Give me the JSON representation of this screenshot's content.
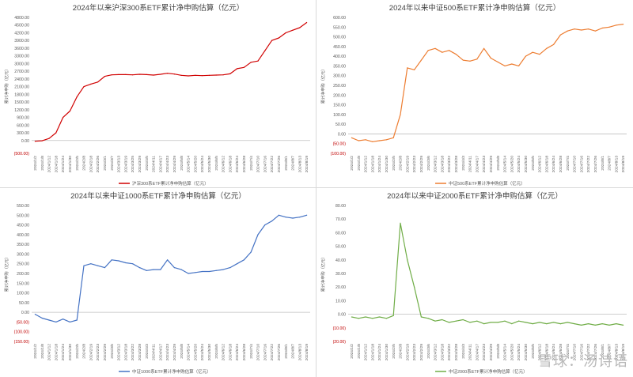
{
  "watermark": "雪球：汤诗语",
  "chart_data": [
    {
      "type": "line",
      "title": "2024年以来沪深300系ETF累计净申购估算（亿元）",
      "ylabel": "累计净申购（亿元）",
      "legend": "沪深300系ETF累计净申购估算（亿元）",
      "legend_position": "bottom",
      "color": "#d00000",
      "ylim": [
        -500,
        4800
      ],
      "yticks": [
        "(500.00)",
        "0.00",
        "300.00",
        "600.00",
        "900.00",
        "1200.00",
        "1500.00",
        "1800.00",
        "2100.00",
        "2400.00",
        "2700.00",
        "3000.00",
        "3300.00",
        "3600.00",
        "3900.00",
        "4200.00",
        "4500.00",
        "4800.00"
      ],
      "ytick_values": [
        -500,
        0,
        300,
        600,
        900,
        1200,
        1500,
        1800,
        2100,
        2400,
        2700,
        3000,
        3300,
        3600,
        3900,
        4200,
        4500,
        4800
      ],
      "xticks": [
        "2024/1/2",
        "2024/1/8",
        "2024/1/12",
        "2024/1/18",
        "2024/1/24",
        "2024/1/30",
        "2024/2/5",
        "2024/2/8",
        "2024/2/18",
        "2024/2/26",
        "2024/3/1",
        "2024/3/7",
        "2024/3/13",
        "2024/3/19",
        "2024/3/25",
        "2024/3/29",
        "2024/4/5",
        "2024/4/11",
        "2024/4/17",
        "2024/4/23",
        "2024/4/29",
        "2024/5/8",
        "2024/5/14",
        "2024/5/20",
        "2024/5/24",
        "2024/5/30",
        "2024/6/5",
        "2024/6/12",
        "2024/6/18",
        "2024/6/24",
        "2024/6/28",
        "2024/7/4",
        "2024/7/10",
        "2024/7/16",
        "2024/7/22",
        "2024/7/26",
        "2024/8/1",
        "2024/8/7",
        "2024/8/13",
        "2024/8/19"
      ],
      "x": [
        "2024/1/2",
        "2024/1/8",
        "2024/1/12",
        "2024/1/18",
        "2024/1/24",
        "2024/1/30",
        "2024/2/5",
        "2024/2/8",
        "2024/2/18",
        "2024/2/26",
        "2024/3/1",
        "2024/3/7",
        "2024/3/13",
        "2024/3/19",
        "2024/3/25",
        "2024/3/29",
        "2024/4/5",
        "2024/4/11",
        "2024/4/17",
        "2024/4/23",
        "2024/4/29",
        "2024/5/8",
        "2024/5/14",
        "2024/5/20",
        "2024/5/24",
        "2024/5/30",
        "2024/6/5",
        "2024/6/12",
        "2024/6/18",
        "2024/6/24",
        "2024/6/28",
        "2024/7/4",
        "2024/7/10",
        "2024/7/16",
        "2024/7/22",
        "2024/7/26",
        "2024/8/1",
        "2024/8/7",
        "2024/8/13",
        "2024/8/19"
      ],
      "values": [
        -30,
        -10,
        80,
        300,
        900,
        1150,
        1700,
        2100,
        2200,
        2280,
        2500,
        2560,
        2570,
        2570,
        2560,
        2580,
        2570,
        2550,
        2580,
        2620,
        2590,
        2540,
        2520,
        2540,
        2530,
        2540,
        2550,
        2560,
        2600,
        2800,
        2850,
        3050,
        3100,
        3500,
        3900,
        4000,
        4200,
        4300,
        4400,
        4600
      ]
    },
    {
      "type": "line",
      "title": "2024年以来中证500系ETF累计净申购估算（亿元）",
      "ylabel": "累计净申购（亿元）",
      "legend": "中证500系ETF累计净申购估算（亿元）",
      "legend_position": "bottom",
      "color": "#ed7d31",
      "ylim": [
        -100,
        600
      ],
      "yticks": [
        "(100.00)",
        "(50.00)",
        "0.00",
        "50.00",
        "100.00",
        "150.00",
        "200.00",
        "250.00",
        "300.00",
        "350.00",
        "400.00",
        "450.00",
        "500.00",
        "550.00",
        "600.00"
      ],
      "ytick_values": [
        -100,
        -50,
        0,
        50,
        100,
        150,
        200,
        250,
        300,
        350,
        400,
        450,
        500,
        550,
        600
      ],
      "xticks": [
        "2024/1/2",
        "2024/1/8",
        "2024/1/12",
        "2024/1/18",
        "2024/1/24",
        "2024/1/30",
        "2024/2/5",
        "2024/2/8",
        "2024/2/19",
        "2024/2/23",
        "2024/2/29",
        "2024/3/6",
        "2024/3/12",
        "2024/3/18",
        "2024/3/22",
        "2024/3/28",
        "2024/4/3",
        "2024/4/11",
        "2024/4/17",
        "2024/4/23",
        "2024/4/29",
        "2024/5/8",
        "2024/5/14",
        "2024/5/20",
        "2024/5/24",
        "2024/5/30",
        "2024/6/5",
        "2024/6/12",
        "2024/6/18",
        "2024/6/24",
        "2024/6/28",
        "2024/7/4",
        "2024/7/10",
        "2024/7/16",
        "2024/7/22",
        "2024/7/26",
        "2024/8/1",
        "2024/8/7",
        "2024/8/13",
        "2024/8/19"
      ],
      "x": [
        "2024/1/2",
        "2024/1/8",
        "2024/1/12",
        "2024/1/18",
        "2024/1/24",
        "2024/1/30",
        "2024/2/5",
        "2024/2/8",
        "2024/2/19",
        "2024/2/23",
        "2024/2/29",
        "2024/3/6",
        "2024/3/12",
        "2024/3/18",
        "2024/3/22",
        "2024/3/28",
        "2024/4/3",
        "2024/4/11",
        "2024/4/17",
        "2024/4/23",
        "2024/4/29",
        "2024/5/8",
        "2024/5/14",
        "2024/5/20",
        "2024/5/24",
        "2024/5/30",
        "2024/6/5",
        "2024/6/12",
        "2024/6/18",
        "2024/6/24",
        "2024/6/28",
        "2024/7/4",
        "2024/7/10",
        "2024/7/16",
        "2024/7/22",
        "2024/7/26",
        "2024/8/1",
        "2024/8/7",
        "2024/8/13",
        "2024/8/19"
      ],
      "values": [
        -20,
        -35,
        -30,
        -40,
        -35,
        -30,
        -20,
        100,
        340,
        330,
        380,
        430,
        440,
        420,
        430,
        410,
        380,
        375,
        385,
        440,
        390,
        370,
        350,
        360,
        350,
        400,
        420,
        410,
        440,
        460,
        510,
        530,
        540,
        535,
        540,
        530,
        545,
        550,
        560,
        565
      ]
    },
    {
      "type": "line",
      "title": "2024年以来中证1000系ETF累计净申购估算（亿元）",
      "ylabel": "累计净申购（亿元）",
      "legend": "中证1000系ETF累计净申购估算（亿元）",
      "legend_position": "bottom",
      "color": "#4472c4",
      "ylim": [
        -150,
        550
      ],
      "yticks": [
        "(150.00)",
        "(100.00)",
        "(50.00)",
        "0.00",
        "50.00",
        "100.00",
        "150.00",
        "200.00",
        "250.00",
        "300.00",
        "350.00",
        "400.00",
        "450.00",
        "500.00",
        "550.00"
      ],
      "ytick_values": [
        -150,
        -100,
        -50,
        0,
        50,
        100,
        150,
        200,
        250,
        300,
        350,
        400,
        450,
        500,
        550
      ],
      "xticks": [
        "2024/1/2",
        "2024/1/8",
        "2024/1/12",
        "2024/1/18",
        "2024/1/24",
        "2024/1/30",
        "2024/2/5",
        "2024/2/8",
        "2024/2/19",
        "2024/2/23",
        "2024/2/29",
        "2024/3/6",
        "2024/3/12",
        "2024/3/18",
        "2024/3/22",
        "2024/3/28",
        "2024/4/3",
        "2024/4/11",
        "2024/4/17",
        "2024/4/23",
        "2024/4/29",
        "2024/5/8",
        "2024/5/14",
        "2024/5/20",
        "2024/5/24",
        "2024/5/30",
        "2024/6/5",
        "2024/6/12",
        "2024/6/18",
        "2024/6/24",
        "2024/6/28",
        "2024/7/4",
        "2024/7/10",
        "2024/7/16",
        "2024/7/22",
        "2024/7/26",
        "2024/8/1",
        "2024/8/7",
        "2024/8/13",
        "2024/8/19"
      ],
      "x": [
        "2024/1/2",
        "2024/1/8",
        "2024/1/12",
        "2024/1/18",
        "2024/1/24",
        "2024/1/30",
        "2024/2/5",
        "2024/2/8",
        "2024/2/19",
        "2024/2/23",
        "2024/2/29",
        "2024/3/6",
        "2024/3/12",
        "2024/3/18",
        "2024/3/22",
        "2024/3/28",
        "2024/4/3",
        "2024/4/11",
        "2024/4/17",
        "2024/4/23",
        "2024/4/29",
        "2024/5/8",
        "2024/5/14",
        "2024/5/20",
        "2024/5/24",
        "2024/5/30",
        "2024/6/5",
        "2024/6/12",
        "2024/6/18",
        "2024/6/24",
        "2024/6/28",
        "2024/7/4",
        "2024/7/10",
        "2024/7/16",
        "2024/7/22",
        "2024/7/26",
        "2024/8/1",
        "2024/8/7",
        "2024/8/13",
        "2024/8/19"
      ],
      "values": [
        -10,
        -30,
        -40,
        -50,
        -35,
        -50,
        -40,
        240,
        250,
        240,
        230,
        270,
        265,
        255,
        250,
        230,
        215,
        220,
        220,
        270,
        230,
        220,
        200,
        205,
        210,
        210,
        215,
        220,
        230,
        250,
        270,
        310,
        400,
        450,
        470,
        500,
        490,
        485,
        490,
        500
      ]
    },
    {
      "type": "line",
      "title": "2024年以来中证2000系ETF累计净申购估算（亿元）",
      "ylabel": "累计净申购（亿元）",
      "legend": "中证2000系ETF累计净申购估算（亿元）",
      "legend_position": "bottom",
      "color": "#70ad47",
      "ylim": [
        -20,
        80
      ],
      "yticks": [
        "(20.00)",
        "(10.00)",
        "0.00",
        "10.00",
        "20.00",
        "30.00",
        "40.00",
        "50.00",
        "60.00",
        "70.00",
        "80.00"
      ],
      "ytick_values": [
        -20,
        -10,
        0,
        10,
        20,
        30,
        40,
        50,
        60,
        70,
        80
      ],
      "xticks": [
        "2024/1/2",
        "2024/1/8",
        "2024/1/12",
        "2024/1/18",
        "2024/1/24",
        "2024/1/30",
        "2024/2/5",
        "2024/2/8",
        "2024/2/19",
        "2024/2/23",
        "2024/2/29",
        "2024/3/6",
        "2024/3/12",
        "2024/3/18",
        "2024/3/22",
        "2024/3/28",
        "2024/4/3",
        "2024/4/11",
        "2024/4/17",
        "2024/4/23",
        "2024/4/29",
        "2024/5/8",
        "2024/5/14",
        "2024/5/20",
        "2024/5/24",
        "2024/5/30",
        "2024/6/5",
        "2024/6/12",
        "2024/6/18",
        "2024/6/24",
        "2024/6/28",
        "2024/7/4",
        "2024/7/10",
        "2024/7/16",
        "2024/7/22",
        "2024/7/26",
        "2024/8/1",
        "2024/8/7",
        "2024/8/13",
        "2024/8/19"
      ],
      "x": [
        "2024/1/2",
        "2024/1/8",
        "2024/1/12",
        "2024/1/18",
        "2024/1/24",
        "2024/1/30",
        "2024/2/5",
        "2024/2/8",
        "2024/2/19",
        "2024/2/23",
        "2024/2/29",
        "2024/3/6",
        "2024/3/12",
        "2024/3/18",
        "2024/3/22",
        "2024/3/28",
        "2024/4/3",
        "2024/4/11",
        "2024/4/17",
        "2024/4/23",
        "2024/4/29",
        "2024/5/8",
        "2024/5/14",
        "2024/5/20",
        "2024/5/24",
        "2024/5/30",
        "2024/6/5",
        "2024/6/12",
        "2024/6/18",
        "2024/6/24",
        "2024/6/28",
        "2024/7/4",
        "2024/7/10",
        "2024/7/16",
        "2024/7/22",
        "2024/7/26",
        "2024/8/1",
        "2024/8/7",
        "2024/8/13",
        "2024/8/19"
      ],
      "values": [
        -2,
        -3,
        -2,
        -3,
        -2,
        -3,
        -1,
        67,
        40,
        20,
        -2,
        -3,
        -5,
        -4,
        -6,
        -5,
        -4,
        -6,
        -5,
        -7,
        -6,
        -6,
        -5,
        -7,
        -5,
        -6,
        -7,
        -6,
        -7,
        -6,
        -7,
        -6,
        -7,
        -8,
        -7,
        -8,
        -7,
        -8,
        -7,
        -8
      ]
    }
  ]
}
